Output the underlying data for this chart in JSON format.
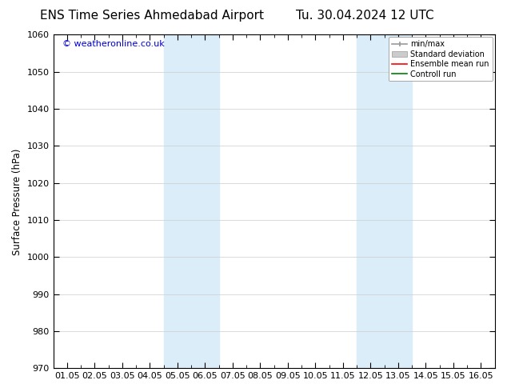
{
  "title_left": "ENS Time Series Ahmedabad Airport",
  "title_right": "Tu. 30.04.2024 12 UTC",
  "ylabel": "Surface Pressure (hPa)",
  "ylim": [
    970,
    1060
  ],
  "yticks": [
    970,
    980,
    990,
    1000,
    1010,
    1020,
    1030,
    1040,
    1050,
    1060
  ],
  "xlim": [
    0,
    15
  ],
  "xtick_labels": [
    "01.05",
    "02.05",
    "03.05",
    "04.05",
    "05.05",
    "06.05",
    "07.05",
    "08.05",
    "09.05",
    "10.05",
    "11.05",
    "12.05",
    "13.05",
    "14.05",
    "15.05",
    "16.05"
  ],
  "xtick_positions": [
    0,
    1,
    2,
    3,
    4,
    5,
    6,
    7,
    8,
    9,
    10,
    11,
    12,
    13,
    14,
    15
  ],
  "shaded_bands": [
    {
      "x_start": 3.5,
      "x_end": 5.5
    },
    {
      "x_start": 10.5,
      "x_end": 12.5
    }
  ],
  "shaded_color": "#daedf8",
  "watermark": "© weatheronline.co.uk",
  "watermark_color": "#0000cc",
  "legend_entries": [
    "min/max",
    "Standard deviation",
    "Ensemble mean run",
    "Controll run"
  ],
  "legend_colors": [
    "#999999",
    "#cccccc",
    "#ff0000",
    "#008000"
  ],
  "background_color": "#ffffff",
  "grid_color": "#cccccc",
  "title_fontsize": 11,
  "axis_fontsize": 8.5,
  "tick_fontsize": 8
}
